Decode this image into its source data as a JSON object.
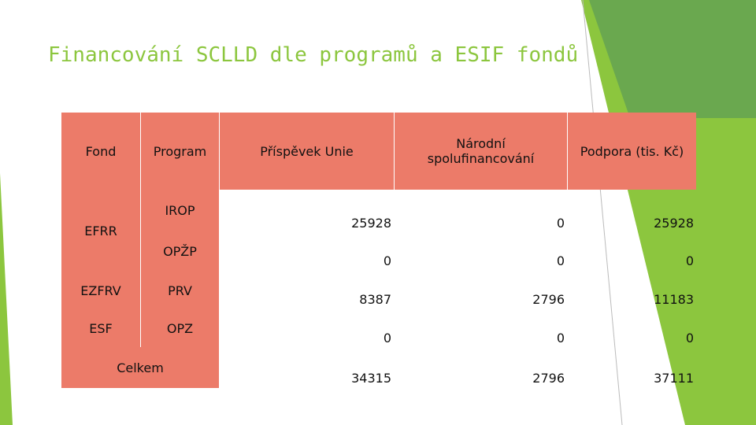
{
  "slide": {
    "title": "Financování  SCLLD dle  programů a ESIF fondů",
    "colors": {
      "accent_green": "#8cc63e",
      "dark_green": "#6aa84f",
      "header_fill": "#ec7b69"
    }
  },
  "table": {
    "headers": {
      "fond": "Fond",
      "program": "Program",
      "prispevek": "Příspěvek Unie",
      "narodni": "Národní spolufinancování",
      "podpora": "Podpora  (tis. Kč)"
    },
    "fonds": [
      "EFRR",
      "EZFRV",
      "ESF"
    ],
    "programs": [
      "IROP",
      "OPŽP",
      "PRV",
      "OPZ"
    ],
    "total_label": "Celkem",
    "rows": [
      {
        "prispevek": "25928",
        "narodni": "0",
        "podpora": "25928"
      },
      {
        "prispevek": "0",
        "narodni": "0",
        "podpora": "0"
      },
      {
        "prispevek": "8387",
        "narodni": "2796",
        "podpora": "11183"
      },
      {
        "prispevek": "0",
        "narodni": "0",
        "podpora": "0"
      },
      {
        "prispevek": "34315",
        "narodni": "2796",
        "podpora": "37111"
      }
    ]
  }
}
